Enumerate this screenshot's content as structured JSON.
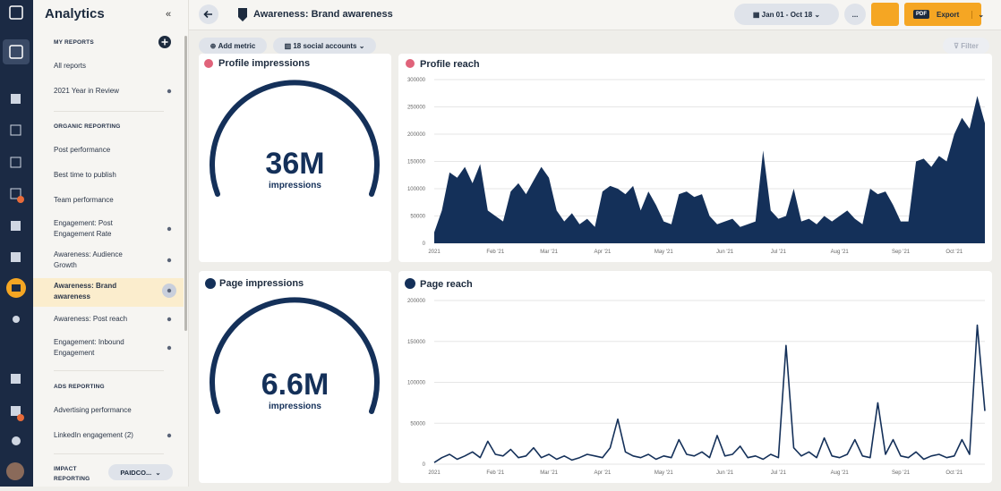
{
  "sidebar": {
    "title": "Analytics",
    "my_reports": {
      "title": "MY REPORTS",
      "items": [
        "All reports",
        "2021 Year in Review"
      ]
    },
    "organic": {
      "title": "ORGANIC REPORTING",
      "items": [
        "Post performance",
        "Best time to publish",
        "Team performance",
        "Engagement: Post Engagement Rate",
        "Awareness: Audience Growth",
        "Awareness: Brand awareness",
        "Awareness: Post reach",
        "Engagement: Inbound Engagement"
      ]
    },
    "ads": {
      "title": "ADS REPORTING",
      "items": [
        "Advertising performance",
        "LinkedIn engagement (2)"
      ]
    },
    "impact": {
      "title": "IMPACT REPORTING",
      "select": "PAIDCO..."
    }
  },
  "header": {
    "title": "Awareness: Brand awareness",
    "date_range": "Jan 01 - Oct 18",
    "more": "...",
    "pdf": "PDF",
    "export": "Export"
  },
  "toolbar": {
    "add_metric": "Add metric",
    "accounts": "18 social accounts",
    "filter": "Filter"
  },
  "widgets": [
    {
      "title": "Profile impressions",
      "value": "36M",
      "unit": "impressions"
    },
    {
      "title": "Page impressions",
      "value": "6.6M",
      "unit": "impressions"
    }
  ],
  "chart_data": [
    {
      "type": "area",
      "title": "Profile reach",
      "color": "#143059",
      "categories": [
        "2021",
        null,
        null,
        null,
        null,
        null,
        null,
        null,
        "Feb '21",
        null,
        null,
        null,
        null,
        null,
        null,
        "Mar '21",
        null,
        null,
        null,
        null,
        null,
        null,
        "Apr '21",
        null,
        null,
        null,
        null,
        null,
        null,
        null,
        "May '21",
        null,
        null,
        null,
        null,
        null,
        null,
        null,
        "Jun '21",
        null,
        null,
        null,
        null,
        null,
        null,
        "Jul '21",
        null,
        null,
        null,
        null,
        null,
        null,
        null,
        "Aug '21",
        null,
        null,
        null,
        null,
        null,
        null,
        null,
        "Sep '21",
        null,
        null,
        null,
        null,
        null,
        null,
        "Oct '21",
        null,
        null,
        null,
        null
      ],
      "values": [
        20000,
        60000,
        130000,
        120000,
        140000,
        110000,
        145000,
        60000,
        50000,
        40000,
        95000,
        110000,
        90000,
        115000,
        140000,
        120000,
        60000,
        40000,
        55000,
        35000,
        45000,
        30000,
        95000,
        105000,
        100000,
        90000,
        105000,
        60000,
        95000,
        70000,
        40000,
        35000,
        90000,
        95000,
        85000,
        90000,
        50000,
        35000,
        40000,
        45000,
        30000,
        35000,
        40000,
        170000,
        60000,
        45000,
        50000,
        100000,
        40000,
        45000,
        35000,
        50000,
        40000,
        50000,
        60000,
        45000,
        35000,
        100000,
        90000,
        95000,
        70000,
        40000,
        40000,
        150000,
        155000,
        140000,
        160000,
        150000,
        200000,
        230000,
        210000,
        270000,
        220000
      ],
      "ylim": [
        0,
        300000
      ],
      "yticks": [
        0,
        50000,
        100000,
        150000,
        200000,
        250000,
        300000
      ],
      "grid": true
    },
    {
      "type": "line",
      "title": "Page reach",
      "color": "#143059",
      "categories": [
        "2021",
        null,
        null,
        null,
        null,
        null,
        null,
        null,
        "Feb '21",
        null,
        null,
        null,
        null,
        null,
        null,
        "Mar '21",
        null,
        null,
        null,
        null,
        null,
        null,
        "Apr '21",
        null,
        null,
        null,
        null,
        null,
        null,
        null,
        "May '21",
        null,
        null,
        null,
        null,
        null,
        null,
        null,
        "Jun '21",
        null,
        null,
        null,
        null,
        null,
        null,
        "Jul '21",
        null,
        null,
        null,
        null,
        null,
        null,
        null,
        "Aug '21",
        null,
        null,
        null,
        null,
        null,
        null,
        null,
        "Sep '21",
        null,
        null,
        null,
        null,
        null,
        null,
        "Oct '21",
        null,
        null,
        null,
        null
      ],
      "values": [
        2000,
        8000,
        12000,
        6000,
        10000,
        15000,
        8000,
        28000,
        12000,
        10000,
        18000,
        8000,
        10000,
        20000,
        8000,
        12000,
        6000,
        10000,
        5000,
        8000,
        12000,
        10000,
        8000,
        20000,
        55000,
        15000,
        10000,
        8000,
        12000,
        6000,
        10000,
        8000,
        30000,
        12000,
        10000,
        15000,
        8000,
        35000,
        10000,
        12000,
        22000,
        8000,
        10000,
        6000,
        12000,
        8000,
        145000,
        20000,
        10000,
        15000,
        8000,
        32000,
        10000,
        8000,
        12000,
        30000,
        10000,
        8000,
        75000,
        12000,
        30000,
        10000,
        8000,
        15000,
        6000,
        10000,
        12000,
        8000,
        10000,
        30000,
        12000,
        170000,
        65000
      ],
      "ylim": [
        0,
        200000
      ],
      "yticks": [
        0,
        50000,
        100000,
        150000,
        200000
      ],
      "grid": true
    }
  ]
}
